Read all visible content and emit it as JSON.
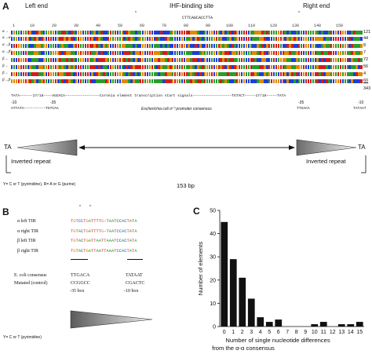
{
  "panelA": {
    "letter": "A",
    "left_end": "Left end",
    "ihf_site": "IHF-binding site",
    "right_end": "Right end",
    "consensus_top": "CTTCAGCACCTTA",
    "ruler": [
      "1",
      "10",
      "20",
      "30",
      "40",
      "50",
      "60",
      "70",
      "80",
      "90",
      "100",
      "110",
      "120",
      "130",
      "140",
      "150"
    ],
    "rows": [
      {
        "label": "α→",
        "count": "121"
      },
      {
        "label": "α→α'",
        "count": "44"
      },
      {
        "label": "α→β",
        "count": "8"
      },
      {
        "label": "α→β'",
        "count": "7"
      },
      {
        "label": "β→",
        "count": "72"
      },
      {
        "label": "β→",
        "count": "56"
      },
      {
        "label": "β→",
        "count": "4"
      },
      {
        "label": "β→β'",
        "count": "60"
      }
    ],
    "total": "343",
    "promoter_line1": "TATA––––––17/18––––AGGACA––––––––––––––––Corneia element transcription start signals––––––––––––––––––TGTACT–––––17/18–––––TATA",
    "promoter_minus10_left": "-10",
    "promoter_minus35_left": "-35",
    "promoter_minus35_right": "-35",
    "promoter_minus10_right": "-10",
    "promoter_line2_left": "ATTATA––––––––––TGTCAA",
    "promoter_line2_mid": "Escherichia coli σ⁷⁰ promoter consensus",
    "promoter_line2_right_a": "TTGACA",
    "promoter_line2_right_b": "TATAAT",
    "ta_left": "TA",
    "ta_right": "TA",
    "inv_left": "Inverted repeat",
    "inv_right": "Inverted repeat",
    "legend": "Y= C or T (pyrimidine), R= A or G (purine)",
    "bp": "153 bp"
  },
  "panelB": {
    "letter": "B",
    "stars": [
      "*",
      "*"
    ],
    "tirs": [
      {
        "label": "α left TIR",
        "seq": "TGTCCTGATTTTG-TAATCCACTATA"
      },
      {
        "label": "α right TIR",
        "seq": "TGTACTGATTTTG-TAATCCACTATA"
      },
      {
        "label": "β left TIR",
        "seq": "TGTACTGATTAATTAAATCCACTATA"
      },
      {
        "label": "β right TIR",
        "seq": "TGTACTGATTAATTAAATCCACTATA"
      }
    ],
    "ecoli_label": "E. coli consensus",
    "mutated_label": "Mutated (control)",
    "ecoli_35": "TTGACA",
    "ecoli_10": "TATAAT",
    "mut_35": "CCGGCC",
    "mut_10": "CGACTC",
    "box35": "-35 box",
    "box10": "-10 box",
    "legend": "Y= C or T (pyrimidine)"
  },
  "panelC": {
    "letter": "C",
    "chart_data": {
      "type": "bar",
      "categories": [
        "0",
        "1",
        "2",
        "3",
        "4",
        "5",
        "6",
        "7",
        "8",
        "9",
        "10",
        "11",
        "12",
        "13",
        "14",
        "15"
      ],
      "values": [
        45,
        29,
        21,
        12,
        4,
        2,
        3,
        0,
        0,
        0,
        1,
        2,
        0,
        1,
        1,
        2
      ],
      "xlabel": "Number of single nucleotide differences from the α-α consensus",
      "ylabel": "Number of elements",
      "ylim": [
        0,
        50
      ],
      "yticks": [
        "0",
        "10",
        "20",
        "30",
        "40",
        "50"
      ],
      "grid": false
    },
    "xlabel_line1": "Number of single nucleotide differences",
    "xlabel_line2": "from the α-α consensus",
    "ylabel": "Number of elements"
  },
  "colors": {
    "A": "#2a9d2a",
    "C": "#1c3fd6",
    "G": "#e08a00",
    "T": "#d51c1c",
    "bar": "#111111"
  }
}
